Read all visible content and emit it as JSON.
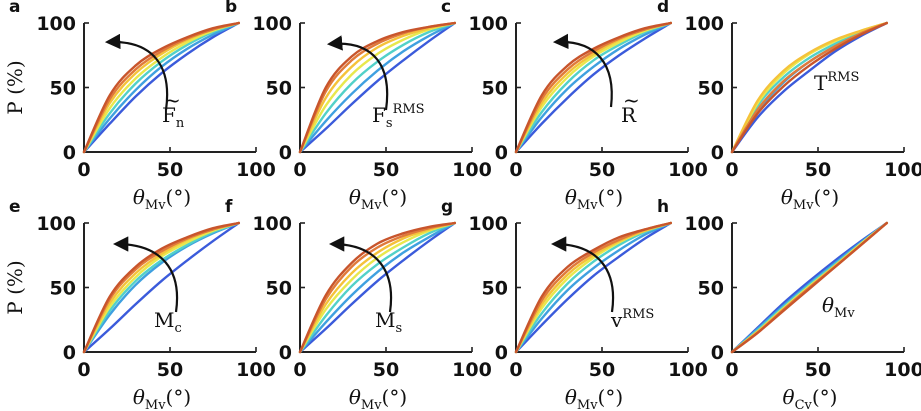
{
  "colors": {
    "series": [
      "#3b5bdb",
      "#3fa0e0",
      "#52d1c8",
      "#9ae86e",
      "#e8e84c",
      "#f5c23a",
      "#e07a3a",
      "#c8552c"
    ],
    "axis": "#222222"
  },
  "chart_data": [
    {
      "panel": "a",
      "type": "line",
      "xlabel_main": "θ",
      "xlabel_sub": "Mv",
      "xlabel_unit": "(°)",
      "ylabel": "P (%)",
      "xlim": [
        0,
        100
      ],
      "ylim": [
        0,
        100
      ],
      "xticks": [
        "0",
        "50",
        "100"
      ],
      "yticks": [
        "0",
        "50",
        "100"
      ],
      "annotation": {
        "base": "F",
        "accent": "~",
        "sub": "n",
        "sup": ""
      },
      "arrow": true,
      "x": [
        0,
        15,
        30,
        45,
        60,
        75,
        90
      ],
      "series": [
        {
          "values": [
            0,
            22,
            43,
            61,
            76,
            89,
            100
          ]
        },
        {
          "values": [
            0,
            26,
            48,
            66,
            80,
            91,
            100
          ]
        },
        {
          "values": [
            0,
            30,
            53,
            70,
            83,
            93,
            100
          ]
        },
        {
          "values": [
            0,
            34,
            57,
            73,
            85,
            94,
            100
          ]
        },
        {
          "values": [
            0,
            38,
            61,
            76,
            87,
            95,
            100
          ]
        },
        {
          "values": [
            0,
            41,
            64,
            78,
            88,
            95,
            100
          ]
        },
        {
          "values": [
            0,
            44,
            67,
            80,
            89,
            96,
            100
          ]
        }
      ]
    },
    {
      "panel": "b",
      "type": "line",
      "xlabel_main": "θ",
      "xlabel_sub": "Mv",
      "xlabel_unit": "(°)",
      "ylabel": "",
      "xlim": [
        0,
        100
      ],
      "ylim": [
        0,
        100
      ],
      "xticks": [
        "0",
        "50",
        "100"
      ],
      "yticks": [
        "0",
        "50",
        "100"
      ],
      "annotation": {
        "base": "F",
        "accent": "",
        "sub": "s",
        "sup": "RMS"
      },
      "arrow": true,
      "x": [
        0,
        15,
        30,
        45,
        60,
        75,
        90
      ],
      "series": [
        {
          "values": [
            0,
            18,
            37,
            55,
            71,
            86,
            100
          ]
        },
        {
          "values": [
            0,
            24,
            45,
            63,
            78,
            90,
            100
          ]
        },
        {
          "values": [
            0,
            30,
            53,
            70,
            83,
            93,
            100
          ]
        },
        {
          "values": [
            0,
            36,
            60,
            76,
            87,
            95,
            100
          ]
        },
        {
          "values": [
            0,
            42,
            66,
            81,
            90,
            96,
            100
          ]
        },
        {
          "values": [
            0,
            47,
            71,
            84,
            92,
            97,
            100
          ]
        },
        {
          "values": [
            0,
            50,
            74,
            86,
            93,
            97,
            100
          ]
        }
      ]
    },
    {
      "panel": "c",
      "type": "line",
      "xlabel_main": "θ",
      "xlabel_sub": "Mv",
      "xlabel_unit": "(°)",
      "ylabel": "",
      "xlim": [
        0,
        100
      ],
      "ylim": [
        0,
        100
      ],
      "xticks": [
        "0",
        "50",
        "100"
      ],
      "yticks": [
        "0",
        "50",
        "100"
      ],
      "annotation": {
        "base": "R",
        "accent": "~",
        "sub": "",
        "sup": ""
      },
      "arrow": true,
      "x": [
        0,
        15,
        30,
        45,
        60,
        75,
        90
      ],
      "series": [
        {
          "values": [
            0,
            22,
            42,
            60,
            75,
            88,
            100
          ]
        },
        {
          "values": [
            0,
            27,
            49,
            66,
            80,
            91,
            100
          ]
        },
        {
          "values": [
            0,
            31,
            54,
            71,
            83,
            93,
            100
          ]
        },
        {
          "values": [
            0,
            35,
            58,
            74,
            85,
            94,
            100
          ]
        },
        {
          "values": [
            0,
            38,
            61,
            76,
            87,
            95,
            100
          ]
        },
        {
          "values": [
            0,
            41,
            64,
            78,
            88,
            95,
            100
          ]
        },
        {
          "values": [
            0,
            44,
            67,
            80,
            89,
            96,
            100
          ]
        }
      ]
    },
    {
      "panel": "d",
      "type": "line",
      "xlabel_main": "θ",
      "xlabel_sub": "Mv",
      "xlabel_unit": "(°)",
      "ylabel": "",
      "xlim": [
        0,
        100
      ],
      "ylim": [
        0,
        100
      ],
      "xticks": [
        "0",
        "50",
        "100"
      ],
      "yticks": [
        "0",
        "50",
        "100"
      ],
      "annotation": {
        "base": "T",
        "accent": "",
        "sub": "",
        "sup": "RMS"
      },
      "arrow": false,
      "x": [
        0,
        15,
        30,
        45,
        60,
        75,
        90
      ],
      "series": [
        {
          "values": [
            0,
            27,
            47,
            63,
            78,
            90,
            100
          ]
        },
        {
          "values": [
            0,
            32,
            54,
            70,
            82,
            92,
            100
          ]
        },
        {
          "values": [
            0,
            36,
            58,
            73,
            84,
            93,
            100
          ]
        },
        {
          "values": [
            0,
            38,
            61,
            76,
            86,
            94,
            100
          ]
        },
        {
          "values": [
            0,
            40,
            63,
            77,
            87,
            94,
            100
          ]
        },
        {
          "values": [
            0,
            33,
            55,
            70,
            82,
            92,
            100
          ]
        },
        {
          "values": [
            0,
            30,
            51,
            67,
            80,
            91,
            100
          ]
        }
      ]
    },
    {
      "panel": "e",
      "type": "line",
      "xlabel_main": "θ",
      "xlabel_sub": "Mv",
      "xlabel_unit": "(°)",
      "ylabel": "P (%)",
      "xlim": [
        0,
        100
      ],
      "ylim": [
        0,
        100
      ],
      "xticks": [
        "0",
        "50",
        "100"
      ],
      "yticks": [
        "0",
        "50",
        "100"
      ],
      "annotation": {
        "base": "M",
        "accent": "",
        "sub": "c",
        "sup": ""
      },
      "arrow": true,
      "x": [
        0,
        15,
        30,
        45,
        60,
        75,
        90
      ],
      "series": [
        {
          "values": [
            0,
            18,
            37,
            55,
            71,
            86,
            100
          ]
        },
        {
          "values": [
            0,
            29,
            52,
            69,
            82,
            92,
            100
          ]
        },
        {
          "values": [
            0,
            32,
            55,
            71,
            83,
            93,
            100
          ]
        },
        {
          "values": [
            0,
            35,
            58,
            74,
            85,
            94,
            100
          ]
        },
        {
          "values": [
            0,
            38,
            61,
            76,
            87,
            95,
            100
          ]
        },
        {
          "values": [
            0,
            41,
            64,
            78,
            88,
            95,
            100
          ]
        },
        {
          "values": [
            0,
            43,
            66,
            80,
            89,
            96,
            100
          ]
        }
      ]
    },
    {
      "panel": "f",
      "type": "line",
      "xlabel_main": "θ",
      "xlabel_sub": "Mv",
      "xlabel_unit": "(°)",
      "ylabel": "",
      "xlim": [
        0,
        100
      ],
      "ylim": [
        0,
        100
      ],
      "xticks": [
        "0",
        "50",
        "100"
      ],
      "yticks": [
        "0",
        "50",
        "100"
      ],
      "annotation": {
        "base": "M",
        "accent": "",
        "sub": "s",
        "sup": ""
      },
      "arrow": true,
      "x": [
        0,
        15,
        30,
        45,
        60,
        75,
        90
      ],
      "series": [
        {
          "values": [
            0,
            18,
            37,
            55,
            71,
            86,
            100
          ]
        },
        {
          "values": [
            0,
            23,
            44,
            62,
            77,
            89,
            100
          ]
        },
        {
          "values": [
            0,
            28,
            51,
            68,
            81,
            92,
            100
          ]
        },
        {
          "values": [
            0,
            33,
            56,
            73,
            85,
            94,
            100
          ]
        },
        {
          "values": [
            0,
            37,
            61,
            77,
            88,
            95,
            100
          ]
        },
        {
          "values": [
            0,
            41,
            66,
            81,
            90,
            96,
            100
          ]
        },
        {
          "values": [
            0,
            44,
            69,
            84,
            92,
            97,
            100
          ]
        }
      ]
    },
    {
      "panel": "g",
      "type": "line",
      "xlabel_main": "θ",
      "xlabel_sub": "Mv",
      "xlabel_unit": "(°)",
      "ylabel": "",
      "xlim": [
        0,
        100
      ],
      "ylim": [
        0,
        100
      ],
      "xticks": [
        "0",
        "50",
        "100"
      ],
      "yticks": [
        "0",
        "50",
        "100"
      ],
      "annotation": {
        "base": "v",
        "accent": "",
        "sub": "",
        "sup": "RMS"
      },
      "arrow": true,
      "x": [
        0,
        15,
        30,
        45,
        60,
        75,
        90
      ],
      "series": [
        {
          "values": [
            0,
            21,
            41,
            59,
            74,
            88,
            100
          ]
        },
        {
          "values": [
            0,
            26,
            48,
            65,
            79,
            91,
            100
          ]
        },
        {
          "values": [
            0,
            30,
            53,
            70,
            83,
            93,
            100
          ]
        },
        {
          "values": [
            0,
            34,
            57,
            73,
            85,
            94,
            100
          ]
        },
        {
          "values": [
            0,
            37,
            60,
            75,
            86,
            94,
            100
          ]
        },
        {
          "values": [
            0,
            40,
            63,
            77,
            87,
            95,
            100
          ]
        },
        {
          "values": [
            0,
            43,
            66,
            79,
            89,
            95,
            100
          ]
        }
      ]
    },
    {
      "panel": "h",
      "type": "line",
      "xlabel_main": "θ",
      "xlabel_sub": "Cv",
      "xlabel_unit": "(°)",
      "ylabel": "",
      "xlim": [
        0,
        100
      ],
      "ylim": [
        0,
        100
      ],
      "xticks": [
        "0",
        "50",
        "100"
      ],
      "yticks": [
        "0",
        "50",
        "100"
      ],
      "annotation": {
        "base": "θ",
        "accent": "",
        "sub": "Mv",
        "sup": ""
      },
      "arrow": false,
      "x": [
        0,
        15,
        30,
        45,
        60,
        75,
        90
      ],
      "series": [
        {
          "values": [
            0,
            19,
            38,
            55,
            71,
            86,
            100
          ]
        },
        {
          "values": [
            0,
            18,
            36,
            53,
            69,
            85,
            100
          ]
        },
        {
          "values": [
            0,
            17,
            35,
            52,
            68,
            84,
            100
          ]
        },
        {
          "values": [
            0,
            16,
            34,
            51,
            67,
            84,
            100
          ]
        },
        {
          "values": [
            0,
            16,
            33,
            50,
            67,
            83,
            100
          ]
        },
        {
          "values": [
            0,
            15,
            33,
            50,
            66,
            83,
            100
          ]
        },
        {
          "values": [
            0,
            15,
            32,
            49,
            66,
            83,
            100
          ]
        }
      ]
    }
  ]
}
